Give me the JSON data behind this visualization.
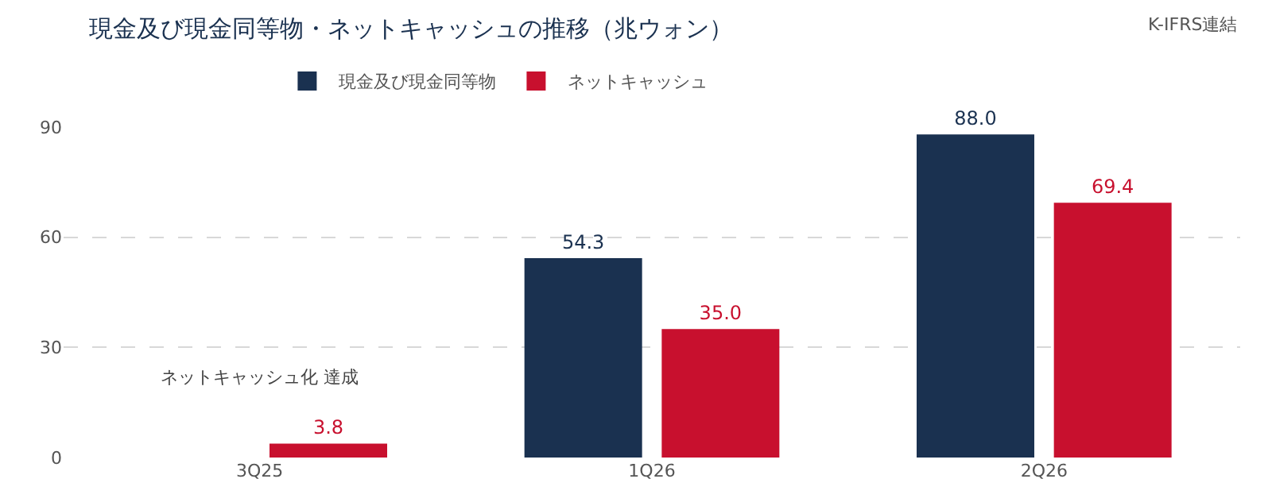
{
  "chart_data": {
    "type": "bar",
    "title": "現金及び現金同等物・ネットキャッシュの推移（兆ウォン）",
    "categories": [
      "3Q25",
      "1Q26",
      "2Q26"
    ],
    "series": [
      {
        "name": "現金及び現金同等物",
        "color": "#1a3150",
        "values": [
          null,
          54.3,
          88.0
        ],
        "value_labels": [
          null,
          "54.3",
          "88.0"
        ]
      },
      {
        "name": "ネットキャッシュ",
        "color": "#c8102e",
        "values": [
          3.8,
          35.0,
          69.4
        ],
        "value_labels": [
          "3.8",
          "35.0",
          "69.4"
        ]
      }
    ],
    "ylim": [
      0,
      90
    ],
    "yticks": [
      0,
      30,
      60,
      90
    ],
    "grid": "y",
    "legend": "top left",
    "annotations": [
      "K-IFRS連結",
      "ネットキャッシュ化 達成"
    ]
  }
}
